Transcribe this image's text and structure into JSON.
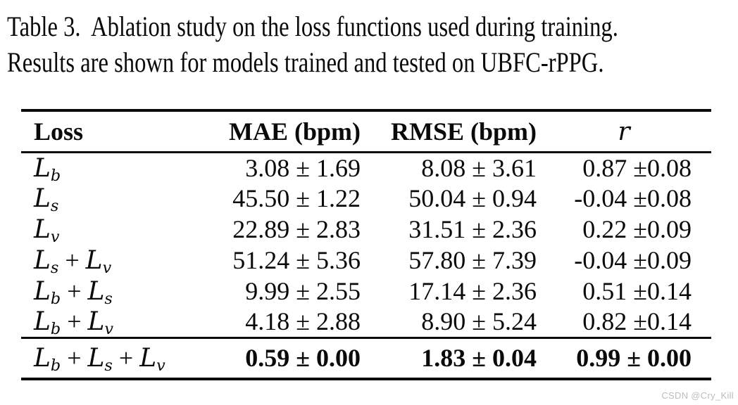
{
  "caption": {
    "line1": "Table 3.  Ablation study on the loss functions used during training.",
    "line2": "Results are shown for models trained and tested on UBFC-rPPG."
  },
  "table": {
    "headers": {
      "loss": "Loss",
      "mae": "MAE (bpm)",
      "rmse": "RMSE (bpm)",
      "r": "r"
    },
    "rows": [
      {
        "loss": "L_b",
        "mae": "3.08 ± 1.69",
        "rmse": "8.08 ± 3.61",
        "r": "0.87 ±0.08",
        "bold": false
      },
      {
        "loss": "L_s",
        "mae": "45.50 ± 1.22",
        "rmse": "50.04 ± 0.94",
        "r": "-0.04 ±0.08",
        "bold": false
      },
      {
        "loss": "L_v",
        "mae": "22.89 ± 2.83",
        "rmse": "31.51 ± 2.36",
        "r": "0.22 ±0.09",
        "bold": false
      },
      {
        "loss": "L_s + L_v",
        "mae": "51.24 ± 5.36",
        "rmse": "57.80 ± 7.39",
        "r": "-0.04 ±0.09",
        "bold": false
      },
      {
        "loss": "L_b + L_s",
        "mae": "9.99 ± 2.55",
        "rmse": "17.14 ± 2.36",
        "r": "0.51 ±0.14",
        "bold": false
      },
      {
        "loss": "L_b + L_v",
        "mae": "4.18 ± 2.88",
        "rmse": "8.90 ± 5.24",
        "r": "0.82 ±0.14",
        "bold": false
      },
      {
        "loss": "L_b + L_s + L_v",
        "mae": "0.59 ± 0.00",
        "rmse": "1.83 ± 0.04",
        "r": "0.99 ± 0.00",
        "bold": true
      }
    ]
  },
  "watermark": "CSDN @Cry_Kill",
  "colors": {
    "text": "#0a0a0a",
    "background": "#ffffff",
    "rule": "#0a0a0a",
    "watermark": "#bdbdbd"
  }
}
